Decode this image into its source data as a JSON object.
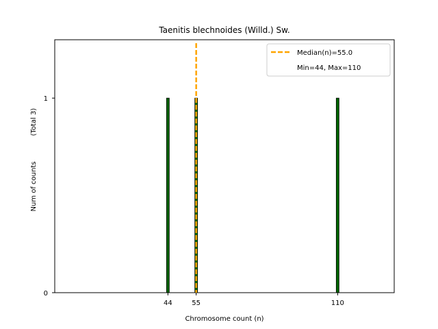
{
  "chart_data": {
    "type": "bar",
    "title": "Taenitis blechnoides (Willd.) Sw.",
    "xlabel": "Chromosome count (n)",
    "ylabel": "Num of counts",
    "ylabel_total": "(Total 3)",
    "x": [
      44,
      55,
      110
    ],
    "values": [
      1,
      1,
      1
    ],
    "xlim": [
      0,
      132
    ],
    "ylim": [
      0,
      1.3
    ],
    "xticks": [
      44,
      55,
      110
    ],
    "yticks": [
      0,
      1
    ],
    "bar_color": "#006400",
    "bar_edge_color": "#000000",
    "median": {
      "value": 55.0,
      "color": "#FFA500",
      "label": "Median(n)=55.0"
    },
    "legend": {
      "position": "top-right",
      "entries": [
        "Median(n)=55.0",
        "Min=44, Max=110"
      ]
    },
    "min_max_label": "Min=44, Max=110"
  }
}
